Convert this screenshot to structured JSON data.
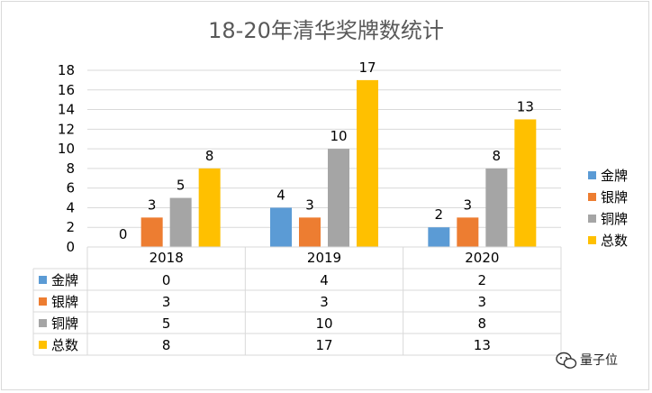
{
  "chart_data": {
    "type": "bar",
    "title": "18-20年清华奖牌数统计",
    "categories": [
      "2018",
      "2019",
      "2020"
    ],
    "series": [
      {
        "name": "金牌",
        "color": "#5b9bd5",
        "values": [
          0,
          4,
          2
        ]
      },
      {
        "name": "银牌",
        "color": "#ed7d31",
        "values": [
          3,
          3,
          3
        ]
      },
      {
        "name": "铜牌",
        "color": "#a5a5a5",
        "values": [
          5,
          10,
          8
        ]
      },
      {
        "name": "总数",
        "color": "#ffc000",
        "values": [
          8,
          17,
          13
        ]
      }
    ],
    "ylim": [
      0,
      18
    ],
    "yticks": [
      0,
      2,
      4,
      6,
      8,
      10,
      12,
      14,
      16,
      18
    ],
    "grid": true,
    "legend_position": "right",
    "data_table": true
  },
  "watermark": {
    "text": "量子位",
    "icon": "wechat-logo-icon"
  }
}
